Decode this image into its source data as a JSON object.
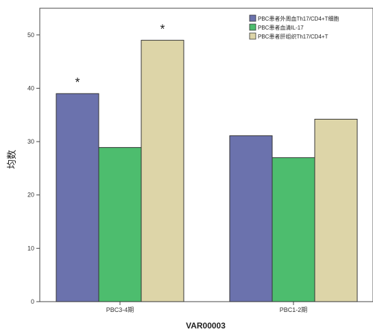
{
  "chart_data": {
    "type": "bar",
    "xlabel": "VAR00003",
    "ylabel": "均数",
    "ylim": [
      0,
      55
    ],
    "yticks": [
      0,
      10,
      20,
      30,
      40,
      50
    ],
    "grid": false,
    "legend_position": "top-right",
    "categories": [
      "PBC3-4期",
      "PBC1-2期"
    ],
    "series": [
      {
        "name": "PBC患者外周血Th17/CD4+T细胞",
        "color": "#6b72ad",
        "values": [
          39.0,
          31.1
        ]
      },
      {
        "name": "PBC患者血清IL-17",
        "color": "#4dbd6e",
        "values": [
          28.9,
          27.0
        ]
      },
      {
        "name": "PBC患者肝组织Th17/CD4+T",
        "color": "#ddd5a8",
        "values": [
          49.0,
          34.2
        ]
      }
    ],
    "annotations": [
      {
        "text": "*",
        "category": 0,
        "series": 0
      },
      {
        "text": "*",
        "category": 0,
        "series": 2
      }
    ]
  }
}
